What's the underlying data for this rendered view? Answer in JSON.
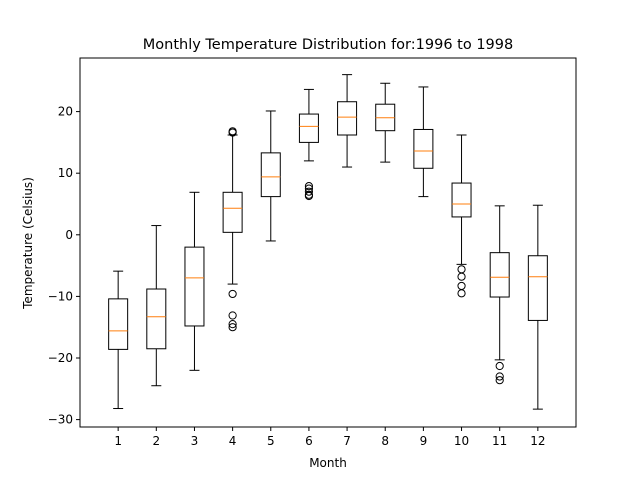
{
  "chart_data": {
    "type": "boxplot",
    "title": "Monthly Temperature Distribution for:1996 to 1998",
    "xlabel": "Month",
    "ylabel": "Temperature (Celsius)",
    "categories": [
      "1",
      "2",
      "3",
      "4",
      "5",
      "6",
      "7",
      "8",
      "9",
      "10",
      "11",
      "12"
    ],
    "ylim": [
      -31.2,
      28.7
    ],
    "yticks": [
      -30,
      -20,
      -10,
      0,
      10,
      20
    ],
    "grid": false,
    "colors": {
      "box": "#000000",
      "median": "#ff7f0e"
    },
    "boxes": [
      {
        "whislo": -28.2,
        "q1": -18.6,
        "med": -15.6,
        "q3": -10.4,
        "whishi": -5.9,
        "fliers": []
      },
      {
        "whislo": -24.5,
        "q1": -18.5,
        "med": -13.3,
        "q3": -8.8,
        "whishi": 1.5,
        "fliers": []
      },
      {
        "whislo": -22.0,
        "q1": -14.8,
        "med": -7.0,
        "q3": -2.0,
        "whishi": 6.9,
        "fliers": []
      },
      {
        "whislo": -8.0,
        "q1": 0.4,
        "med": 4.3,
        "q3": 6.9,
        "whishi": 16.2,
        "fliers": [
          16.8,
          16.6,
          -9.6,
          -13.1,
          -14.5,
          -15.0
        ]
      },
      {
        "whislo": -1.0,
        "q1": 6.2,
        "med": 9.4,
        "q3": 13.3,
        "whishi": 20.1,
        "fliers": []
      },
      {
        "whislo": 12.0,
        "q1": 15.0,
        "med": 17.6,
        "q3": 19.6,
        "whishi": 23.6,
        "fliers": [
          7.9,
          7.5,
          7.0,
          6.5,
          6.3
        ]
      },
      {
        "whislo": 11.0,
        "q1": 16.2,
        "med": 19.1,
        "q3": 21.6,
        "whishi": 26.0,
        "fliers": []
      },
      {
        "whislo": 11.8,
        "q1": 16.9,
        "med": 19.0,
        "q3": 21.2,
        "whishi": 24.6,
        "fliers": []
      },
      {
        "whislo": 6.2,
        "q1": 10.8,
        "med": 13.6,
        "q3": 17.1,
        "whishi": 24.0,
        "fliers": []
      },
      {
        "whislo": -4.8,
        "q1": 2.9,
        "med": 5.0,
        "q3": 8.4,
        "whishi": 16.2,
        "fliers": [
          -5.6,
          -6.8,
          -8.3,
          -9.5
        ]
      },
      {
        "whislo": -20.3,
        "q1": -10.1,
        "med": -6.9,
        "q3": -2.9,
        "whishi": 4.7,
        "fliers": [
          -21.3,
          -23.0,
          -23.6
        ]
      },
      {
        "whislo": -28.3,
        "q1": -13.9,
        "med": -6.8,
        "q3": -3.4,
        "whishi": 4.8,
        "fliers": []
      }
    ]
  }
}
